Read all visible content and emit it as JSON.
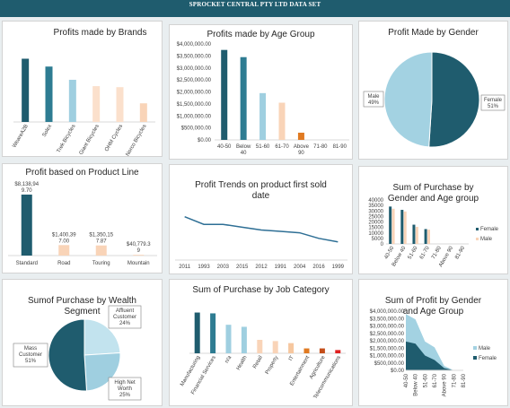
{
  "header": {
    "title": "SPROCKET CENTRAL PTY LTD DATA SET"
  },
  "colors": {
    "banner": "#1f5c6e",
    "dark": "#1f5c6e",
    "teal": "#3a8da3",
    "light": "#9fcfe0",
    "peach": "#f9d4b8",
    "peach2": "#f6c79f",
    "orange": "#e07a22",
    "darkorange": "#c44e1a",
    "red": "#e02020"
  },
  "chart_data": [
    {
      "id": "brands",
      "type": "bar",
      "title": "Profits made by Brands",
      "categories": [
        "WeareA2B",
        "Solex",
        "Trek Bicycles",
        "Giant Bicycles",
        "OHM Cycles",
        "Norco Bicycles"
      ],
      "values": [
        1290000,
        1130000,
        860000,
        730000,
        710000,
        380000
      ],
      "ylim": [
        0,
        1500000
      ],
      "colors": [
        "#1f5c6e",
        "#2e7c92",
        "#9fcfe0",
        "#fbe0cc",
        "#fbe0cc",
        "#f9d4b8"
      ]
    },
    {
      "id": "age",
      "type": "bar",
      "title": "Profits made by Age Group",
      "categories": [
        "40-50",
        "Below 40",
        "51-60",
        "61-70",
        "Above 90",
        "71-80",
        "81-90"
      ],
      "values": [
        3750000,
        3450000,
        1950000,
        1550000,
        300000,
        0,
        0
      ],
      "yticks": [
        "$4,000,000.00",
        "$3,500,000.00",
        "$3,000,000.00",
        "$2,500,000.00",
        "$2,000,000.00",
        "$1,500,000.00",
        "$1,000,000.00",
        "$500,000.00",
        "$0.00"
      ],
      "ylim": [
        0,
        4000000
      ],
      "colors": [
        "#1f5c6e",
        "#2e7c92",
        "#9fcfe0",
        "#f9d4b8",
        "#e07a22",
        "#c44e1a",
        "#c44e1a"
      ]
    },
    {
      "id": "gender",
      "type": "pie",
      "title": "Profit Made by Gender",
      "labels": [
        "Female\n51%",
        "Male\n49%"
      ],
      "values": [
        51,
        49
      ],
      "colors": [
        "#1f5c6e",
        "#a3d2e2"
      ]
    },
    {
      "id": "productline",
      "type": "bar",
      "title": "Profit based on Product Line",
      "categories": [
        "Standard",
        "Road",
        "Touring",
        "Mountain"
      ],
      "values": [
        8138949.7,
        1400397.0,
        1350157.87,
        40779.39
      ],
      "data_labels": [
        "$8,138,94\n9.70",
        "$1,400,39\n7.00",
        "$1,350,15\n7.87",
        "$40,779.3\n9"
      ],
      "ylim": [
        0,
        8500000
      ],
      "colors": [
        "#1f5c6e",
        "#f9d4b8",
        "#f9d4b8",
        "#f9d4b8"
      ]
    },
    {
      "id": "trend",
      "type": "line",
      "title": "Profit Trends on product first sold\ndate",
      "categories": [
        "2011",
        "1993",
        "2003",
        "2015",
        "2012",
        "1991",
        "2004",
        "2016",
        "1999"
      ],
      "values": [
        3.1,
        2.55,
        2.55,
        2.35,
        2.15,
        2.05,
        1.95,
        1.55,
        1.3
      ],
      "ylim": [
        0,
        5
      ],
      "color": "#2e6f95"
    },
    {
      "id": "purchase_gender_age",
      "type": "bar",
      "title": "Sum of Purchase by\nGender and Age group",
      "categories": [
        "40-50",
        "Below 40",
        "51-60",
        "61-70",
        "71-80",
        "Above 90",
        "81-90"
      ],
      "yticks": [
        "40000",
        "35000",
        "30000",
        "25000",
        "20000",
        "15000",
        "10000",
        "5000",
        "0"
      ],
      "ylim": [
        0,
        40000
      ],
      "series": [
        {
          "name": "Female",
          "values": [
            34000,
            31000,
            17500,
            13500,
            0,
            0,
            0
          ],
          "color": "#1f5c6e"
        },
        {
          "name": "Male",
          "values": [
            32000,
            29500,
            15500,
            13000,
            0,
            0,
            0
          ],
          "color": "#f9d4b8"
        }
      ]
    },
    {
      "id": "wealth",
      "type": "pie",
      "title": "Sumof Purchase by Wealth\nSegment",
      "labels": [
        "Mass\nCustomer\n51%",
        "Affluent\nCustomer\n24%",
        "High Net\nWorth\n25%"
      ],
      "values": [
        51,
        24,
        25
      ],
      "colors": [
        "#1f5c6e",
        "#c2e3ee",
        "#9fcfe0"
      ]
    },
    {
      "id": "job",
      "type": "bar",
      "title": "Sum of Purchase by Job Category",
      "categories": [
        "Manufacturing",
        "Financial Services",
        "n/a",
        "Health",
        "Retail",
        "Property",
        "IT",
        "Entertainment",
        "Agriculture",
        "Telecommunications"
      ],
      "values": [
        100,
        98,
        70,
        65,
        33,
        30,
        25,
        12,
        12,
        8
      ],
      "ylim": [
        0,
        110
      ],
      "colors": [
        "#1f5c6e",
        "#2e7c92",
        "#9fcfe0",
        "#9fcfe0",
        "#f9d4b8",
        "#f9d4b8",
        "#f6c79f",
        "#e07a22",
        "#c44e1a",
        "#e02020"
      ]
    },
    {
      "id": "profit_gender_age",
      "type": "area",
      "title": "Sum of Profit by Gender\nand Age Group",
      "categories": [
        "40-50",
        "Below 40",
        "51-60",
        "61-70",
        "Above 90",
        "71-80",
        "81-90"
      ],
      "yticks": [
        "$4,000,000.00",
        "$3,500,000.00",
        "$3,000,000.00",
        "$2,500,000.00",
        "$2,000,000.00",
        "$1,500,000.00",
        "$1,000,000.00",
        "$500,000.00",
        "$0.00"
      ],
      "ylim": [
        0,
        4000000
      ],
      "series": [
        {
          "name": "Female",
          "values": [
            1950000,
            1800000,
            1000000,
            700000,
            150000,
            0,
            0
          ],
          "color": "#1f5c6e"
        },
        {
          "name": "Male",
          "values": [
            1850000,
            1650000,
            950000,
            850000,
            150000,
            0,
            0
          ],
          "color": "#a3d2e2"
        }
      ]
    }
  ]
}
